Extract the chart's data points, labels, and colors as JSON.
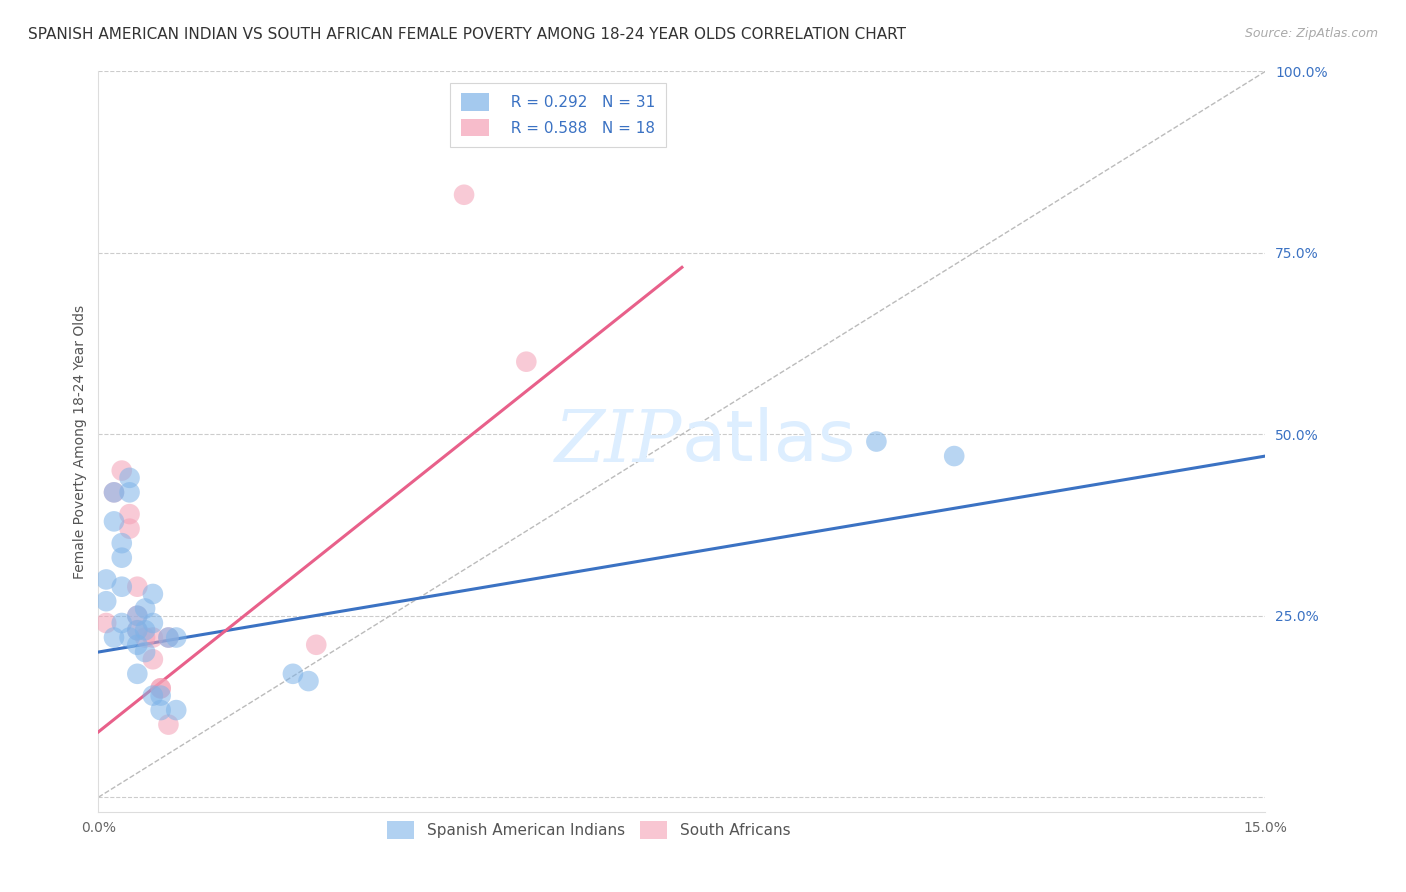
{
  "title": "SPANISH AMERICAN INDIAN VS SOUTH AFRICAN FEMALE POVERTY AMONG 18-24 YEAR OLDS CORRELATION CHART",
  "source": "Source: ZipAtlas.com",
  "ylabel": "Female Poverty Among 18-24 Year Olds",
  "xlim": [
    0.0,
    0.15
  ],
  "ylim": [
    -0.02,
    1.0
  ],
  "xticks": [
    0.0,
    0.03,
    0.06,
    0.09,
    0.12,
    0.15
  ],
  "xticklabels": [
    "0.0%",
    "",
    "",
    "",
    "",
    "15.0%"
  ],
  "yticks_right": [
    0.0,
    0.25,
    0.5,
    0.75,
    1.0
  ],
  "ytick_right_labels": [
    "",
    "25.0%",
    "50.0%",
    "75.0%",
    "100.0%"
  ],
  "watermark_zip": "ZIP",
  "watermark_atlas": "atlas",
  "legend_r1": "R = 0.292",
  "legend_n1": "N = 31",
  "legend_r2": "R = 0.588",
  "legend_n2": "N = 18",
  "blue_color": "#7EB3E8",
  "pink_color": "#F4A0B5",
  "blue_line_color": "#3B72C3",
  "pink_line_color": "#E8608A",
  "ref_line_color": "#BBBBBB",
  "background_color": "#FFFFFF",
  "blue_scatter_x": [
    0.001,
    0.001,
    0.002,
    0.002,
    0.002,
    0.003,
    0.003,
    0.003,
    0.003,
    0.004,
    0.004,
    0.004,
    0.005,
    0.005,
    0.005,
    0.005,
    0.006,
    0.006,
    0.006,
    0.007,
    0.007,
    0.007,
    0.008,
    0.008,
    0.009,
    0.01,
    0.01,
    0.025,
    0.027,
    0.1,
    0.11
  ],
  "blue_scatter_y": [
    0.3,
    0.27,
    0.42,
    0.38,
    0.22,
    0.35,
    0.33,
    0.29,
    0.24,
    0.44,
    0.42,
    0.22,
    0.25,
    0.23,
    0.21,
    0.17,
    0.26,
    0.23,
    0.2,
    0.28,
    0.24,
    0.14,
    0.14,
    0.12,
    0.22,
    0.22,
    0.12,
    0.17,
    0.16,
    0.49,
    0.47
  ],
  "pink_scatter_x": [
    0.001,
    0.002,
    0.003,
    0.004,
    0.004,
    0.005,
    0.005,
    0.005,
    0.006,
    0.007,
    0.007,
    0.008,
    0.008,
    0.009,
    0.009,
    0.028,
    0.047,
    0.055
  ],
  "pink_scatter_y": [
    0.24,
    0.42,
    0.45,
    0.39,
    0.37,
    0.29,
    0.25,
    0.23,
    0.22,
    0.22,
    0.19,
    0.15,
    0.15,
    0.1,
    0.22,
    0.21,
    0.83,
    0.6
  ],
  "blue_line_x": [
    0.0,
    0.15
  ],
  "blue_line_y": [
    0.2,
    0.47
  ],
  "pink_line_x": [
    0.0,
    0.075
  ],
  "pink_line_y": [
    0.09,
    0.73
  ],
  "ref_line_x": [
    0.0,
    0.15
  ],
  "ref_line_y": [
    0.0,
    1.0
  ],
  "grid_color": "#CCCCCC",
  "title_fontsize": 11,
  "axis_label_fontsize": 10,
  "tick_fontsize": 10,
  "legend_fontsize": 11,
  "watermark_fontsize_zip": 52,
  "watermark_fontsize_atlas": 52,
  "watermark_color": "#DDEEFF",
  "source_fontsize": 9,
  "source_color": "#AAAAAA"
}
